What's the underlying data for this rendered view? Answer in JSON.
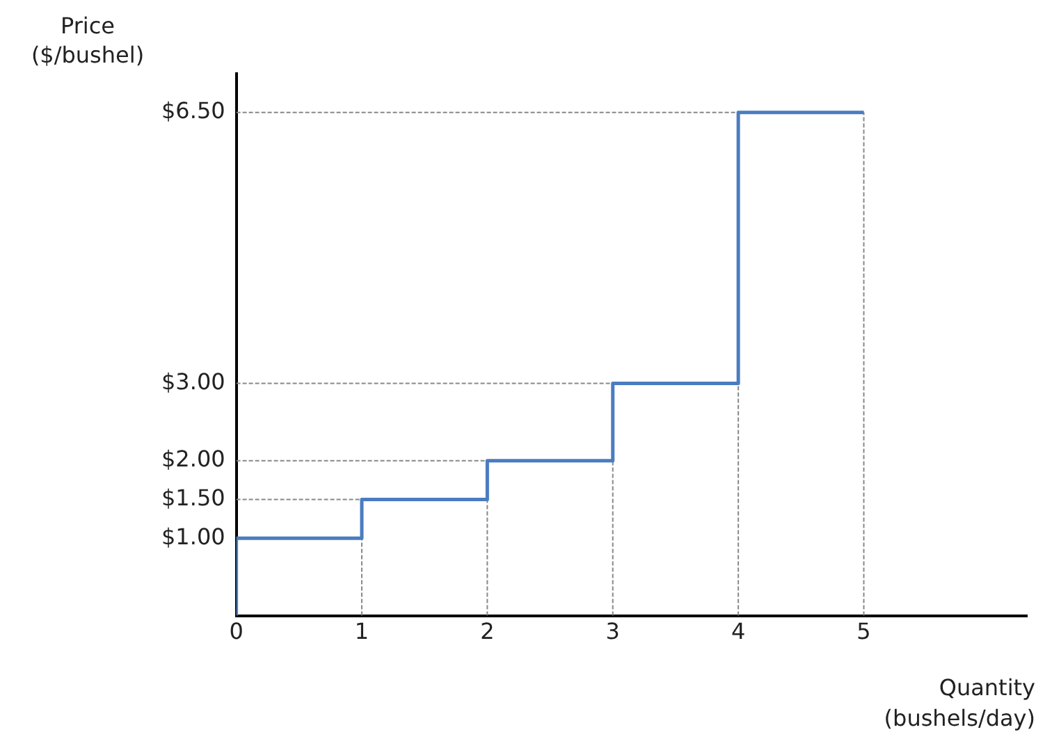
{
  "chart_data": {
    "type": "step",
    "xlabel": "Quantity (bushels/day)",
    "ylabel": "Price ($/bushel)",
    "xlim": [
      0,
      6.3
    ],
    "xticks": [
      0,
      1,
      2,
      3,
      4,
      5
    ],
    "ylim": [
      0,
      7
    ],
    "yticks": [
      {
        "value": 1,
        "label": "$1.00"
      },
      {
        "value": 1.5,
        "label": "$1.50"
      },
      {
        "value": 2,
        "label": "$2.00"
      },
      {
        "value": 3,
        "label": "$3.00"
      },
      {
        "value": 6.5,
        "label": "$6.50"
      }
    ],
    "grid": false,
    "legend": false,
    "series": [
      {
        "type": "line",
        "color": "#888888",
        "line_style": "dotted",
        "x": [
          0,
          1
        ],
        "values": [
          1.5,
          1.5
        ]
      },
      {
        "type": "line",
        "color": "#888888",
        "line_style": "dotted",
        "x": [
          0,
          2
        ],
        "values": [
          2,
          2
        ]
      },
      {
        "type": "line",
        "color": "#888888",
        "line_style": "dotted",
        "x": [
          0,
          3
        ],
        "values": [
          3,
          3
        ]
      },
      {
        "type": "line",
        "color": "#888888",
        "line_style": "dotted",
        "x": [
          0,
          5
        ],
        "values": [
          6.5,
          6.5
        ]
      },
      {
        "type": "line",
        "color": "#888888",
        "line_style": "dotted",
        "x": [
          1,
          1
        ],
        "values": [
          0,
          1
        ]
      },
      {
        "type": "line",
        "color": "#888888",
        "line_style": "dotted",
        "x": [
          2,
          2
        ],
        "values": [
          0,
          1.5
        ]
      },
      {
        "type": "line",
        "color": "#888888",
        "line_style": "dotted",
        "x": [
          3,
          3
        ],
        "values": [
          0,
          2
        ]
      },
      {
        "type": "line",
        "color": "#888888",
        "line_style": "dotted",
        "x": [
          4,
          4
        ],
        "values": [
          0,
          3
        ]
      },
      {
        "type": "line",
        "color": "#888888",
        "line_style": "dotted",
        "x": [
          5,
          5
        ],
        "values": [
          0,
          6.5
        ]
      },
      {
        "type": "step",
        "color": "#4a7cc0",
        "line_style": "solid",
        "x": [
          0,
          0,
          1,
          2,
          3,
          4,
          5
        ],
        "values": [
          0,
          1,
          1.5,
          2,
          3,
          6.5,
          6.5
        ]
      }
    ]
  }
}
